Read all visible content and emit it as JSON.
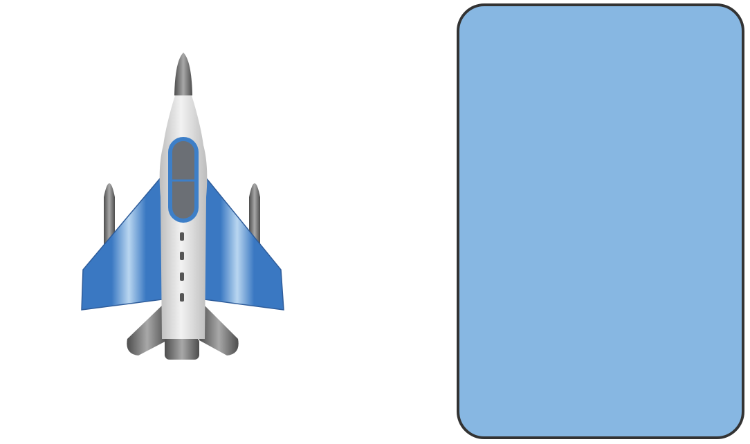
{
  "scene": {
    "background_color": "#ffffff",
    "player": {
      "sprite": "fighter-jet",
      "colors": {
        "wing_blue": "#3a78c2",
        "wing_light": "#b9d6f0",
        "body_light": "#f2f2f2",
        "body_shade": "#bdbdbd",
        "metal_dark": "#4d4d4d",
        "metal_light": "#a8a8a8",
        "cockpit_frame": "#3d7fc8",
        "cockpit_glass": "#6b6f75"
      }
    },
    "panel": {
      "fill_color": "#87b7e2",
      "border_color": "#333333"
    }
  }
}
